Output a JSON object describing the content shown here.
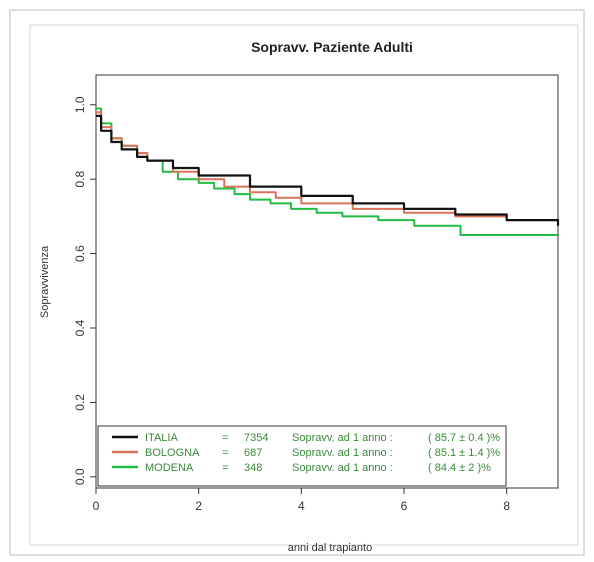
{
  "chart_data": {
    "type": "line",
    "title": "Sopravv. Paziente Adulti",
    "xlabel": "anni dal trapianto",
    "ylabel": "Sopravvivenza",
    "xlim": [
      0,
      9
    ],
    "ylim": [
      -0.03,
      1.08
    ],
    "xticks": [
      0,
      2,
      4,
      6,
      8
    ],
    "xtick_labels": [
      "0",
      "2",
      "4",
      "6",
      "8"
    ],
    "yticks": [
      0.0,
      0.2,
      0.4,
      0.6,
      0.8,
      1.0
    ],
    "ytick_labels": [
      "0.0",
      "0.2",
      "0.4",
      "0.6",
      "0.8",
      "1.0"
    ],
    "grid": false,
    "legend_position": "bottom",
    "series": [
      {
        "name": "ITALIA",
        "color": "#111111",
        "x": [
          0,
          0.1,
          0.3,
          0.5,
          0.8,
          1.0,
          1.5,
          2.0,
          3.0,
          4.0,
          5.0,
          6.0,
          7.0,
          8.0,
          9.0
        ],
        "y": [
          0.97,
          0.93,
          0.9,
          0.88,
          0.86,
          0.85,
          0.83,
          0.81,
          0.78,
          0.755,
          0.735,
          0.72,
          0.705,
          0.69,
          0.675
        ]
      },
      {
        "name": "BOLOGNA",
        "color": "#d9735a",
        "x": [
          0,
          0.1,
          0.3,
          0.5,
          0.8,
          1.0,
          1.5,
          2.0,
          2.5,
          3.0,
          3.5,
          4.0,
          5.0,
          6.0,
          7.0,
          8.0,
          9.0
        ],
        "y": [
          0.98,
          0.94,
          0.91,
          0.89,
          0.87,
          0.85,
          0.82,
          0.8,
          0.78,
          0.765,
          0.75,
          0.735,
          0.72,
          0.71,
          0.7,
          0.69,
          0.685
        ]
      },
      {
        "name": "MODENA",
        "color": "#22bb44",
        "x": [
          0,
          0.1,
          0.3,
          0.5,
          0.8,
          1.0,
          1.3,
          1.6,
          2.0,
          2.3,
          2.7,
          3.0,
          3.4,
          3.8,
          4.3,
          4.8,
          5.5,
          6.2,
          7.1,
          9.0
        ],
        "y": [
          0.99,
          0.95,
          0.91,
          0.89,
          0.87,
          0.85,
          0.82,
          0.8,
          0.79,
          0.775,
          0.76,
          0.745,
          0.735,
          0.72,
          0.71,
          0.7,
          0.69,
          0.675,
          0.65,
          0.65
        ]
      }
    ],
    "legend": [
      {
        "name": "ITALIA",
        "color": "#111111",
        "eq": "=",
        "n": "7354",
        "text": "Sopravv. ad 1 anno :",
        "value": "( 85.7 ± 0.4 )%"
      },
      {
        "name": "BOLOGNA",
        "color": "#d9735a",
        "eq": "=",
        "n": "687",
        "text": "Sopravv. ad 1 anno :",
        "value": "( 85.1 ± 1.4 )%"
      },
      {
        "name": "MODENA",
        "color": "#22bb44",
        "eq": "=",
        "n": "348",
        "text": "Sopravv. ad 1 anno :",
        "value": "( 84.4 ± 2 )%"
      }
    ]
  }
}
